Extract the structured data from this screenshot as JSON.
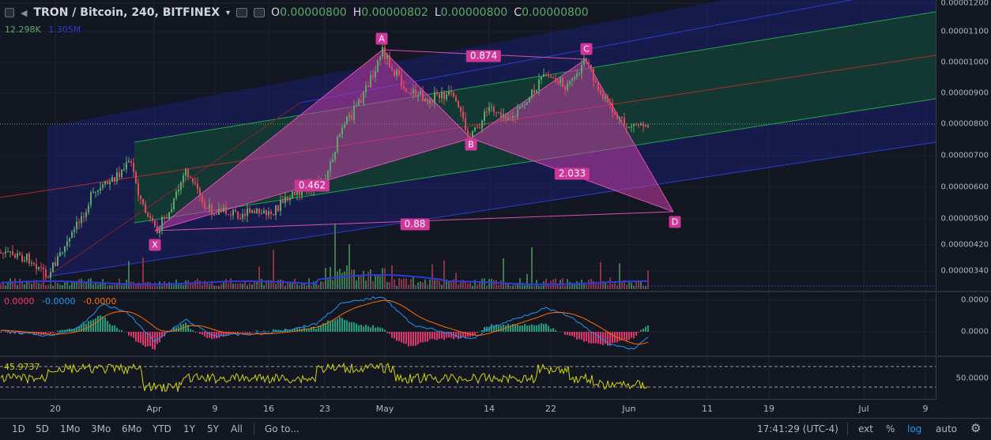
{
  "header": {
    "symbol": "TRON / Bitcoin, 240, BITFINEX",
    "ohlc": [
      {
        "key": "O",
        "value": "0.00000800"
      },
      {
        "key": "H",
        "value": "0.00000802"
      },
      {
        "key": "L",
        "value": "0.00000800"
      },
      {
        "key": "C",
        "value": "0.00000800"
      }
    ],
    "volume_1": "12.298K",
    "volume_2": "1.305M"
  },
  "price_axis": [
    "0.00001200",
    "0.00001100",
    "0.00001000",
    "0.00000900",
    "0.00000800",
    "0.00000700",
    "0.00000600",
    "0.00000500",
    "0.00000420",
    "0.00000340"
  ],
  "pattern": {
    "points": [
      {
        "label": "X"
      },
      {
        "label": "A"
      },
      {
        "label": "B"
      },
      {
        "label": "C"
      },
      {
        "label": "D"
      }
    ],
    "ratios": {
      "ac": "0.874",
      "xb": "0.462",
      "bd": "2.033",
      "xd": "0.88"
    }
  },
  "macd": {
    "values": [
      "0.0000",
      "-0.0000",
      "-0.0000"
    ],
    "colors": [
      "#ff3366",
      "#2196f3",
      "#ff6d00"
    ],
    "axis": [
      "0.0000",
      "0.0000"
    ]
  },
  "rsi": {
    "value": "45.9737",
    "axis": "50.0000"
  },
  "date_axis": [
    "20",
    "Apr",
    "9",
    "16",
    "23",
    "May",
    "14",
    "22",
    "Jun",
    "11",
    "19",
    "Jul",
    "9"
  ],
  "bottom": {
    "timeframes": [
      "1D",
      "5D",
      "1Mo",
      "3Mo",
      "6Mo",
      "YTD",
      "1Y",
      "5Y",
      "All"
    ],
    "goto": "Go to...",
    "clock": "17:41:29 (UTC-4)",
    "right": [
      "ext",
      "%",
      "log",
      "auto"
    ]
  },
  "colors": {
    "background": "#131722",
    "up": "#5aa96b",
    "down": "#e04a5f",
    "harmonic": "#d0359a",
    "channel_blue": "#1c1f8f",
    "channel_green": "#155a2a",
    "channel_red": "#8a2020"
  }
}
